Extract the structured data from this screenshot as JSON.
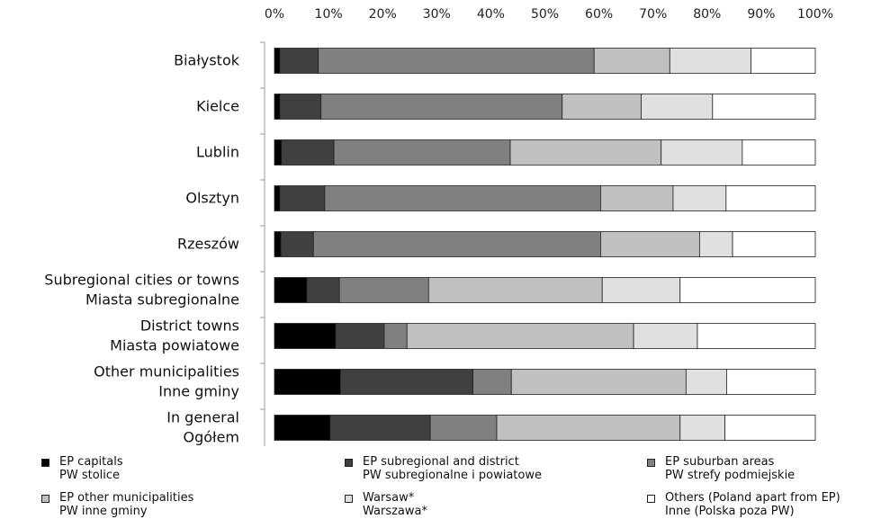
{
  "chart_data": {
    "type": "bar",
    "orientation": "horizontal",
    "stacked": true,
    "percent": true,
    "xlim": [
      0,
      100
    ],
    "x_ticks": [
      "0%",
      "10%",
      "20%",
      "30%",
      "40%",
      "50%",
      "60%",
      "70%",
      "80%",
      "90%",
      "100%"
    ],
    "grid": false,
    "legend_position": "bottom",
    "categories": [
      [
        "Białystok"
      ],
      [
        "Kielce"
      ],
      [
        "Lublin"
      ],
      [
        "Olsztyn"
      ],
      [
        "Rzeszów"
      ],
      [
        "Subregional cities or towns",
        "Miasta subregionalne"
      ],
      [
        "District towns",
        "Miasta powiatowe"
      ],
      [
        "Other municipalities",
        "Inne gminy"
      ],
      [
        "In general",
        "Ogółem"
      ]
    ],
    "series": [
      {
        "name": [
          "EP capitals",
          "PW stolice"
        ],
        "color": "#000000",
        "values": [
          1,
          1,
          1.3,
          1,
          1.2,
          6,
          11.3,
          12.2,
          10.3
        ]
      },
      {
        "name": [
          "EP subregional and district",
          "PW subregionalne i powiatowe"
        ],
        "color": "#404040",
        "values": [
          7.1,
          7.6,
          9.7,
          8.3,
          6,
          6,
          9,
          24.5,
          18.5
        ]
      },
      {
        "name": [
          "EP suburban areas",
          "PW strefy podmiejskie"
        ],
        "color": "#808080",
        "values": [
          51,
          44.6,
          32.6,
          51,
          53.1,
          16.5,
          4.2,
          7.1,
          12.3
        ]
      },
      {
        "name": [
          "EP other municipalities",
          "PW inne gminy"
        ],
        "color": "#c0c0c0",
        "values": [
          14,
          14.6,
          27.9,
          13.4,
          18.3,
          32.1,
          41.9,
          32.3,
          33.9
        ]
      },
      {
        "name": [
          "Warsaw*",
          "Warszawa*"
        ],
        "color": "#e0e0e0",
        "values": [
          15,
          13.2,
          15,
          9.8,
          6.1,
          14.4,
          11.8,
          7.5,
          8.3
        ]
      },
      {
        "name": [
          "Others (Poland apart from EP)",
          "Inne (Polska poza PW)"
        ],
        "color": "#ffffff",
        "values": [
          11.9,
          19,
          13.5,
          16.5,
          15.3,
          25,
          21.8,
          16.4,
          16.7
        ]
      }
    ]
  }
}
